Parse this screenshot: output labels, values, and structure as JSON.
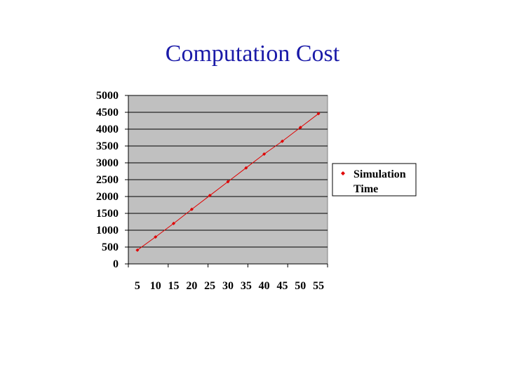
{
  "slide": {
    "title": "Computation Cost"
  },
  "colors": {
    "plot_bg": "#c0c0c0",
    "series": "#e00000",
    "title": "#1a1aa8"
  },
  "chart_data": {
    "type": "line",
    "title": "",
    "xlabel": "",
    "ylabel": "",
    "x": [
      5,
      10,
      15,
      20,
      25,
      30,
      35,
      40,
      45,
      50,
      55
    ],
    "x_tick_labels": [
      "5",
      "10",
      "15",
      "20",
      "25",
      "30",
      "35",
      "40",
      "45",
      "50",
      "55"
    ],
    "y_tick_labels": [
      "5000",
      "4500",
      "4000",
      "3500",
      "3000",
      "2500",
      "2000",
      "1500",
      "1000",
      "500",
      "0"
    ],
    "ylim": [
      0,
      5000
    ],
    "y_tick_step": 500,
    "grid": true,
    "legend_placement": "right",
    "series": [
      {
        "name": "Simulation Time",
        "values": [
          410,
          800,
          1200,
          1620,
          2030,
          2440,
          2850,
          3260,
          3640,
          4050,
          4460
        ]
      }
    ]
  }
}
